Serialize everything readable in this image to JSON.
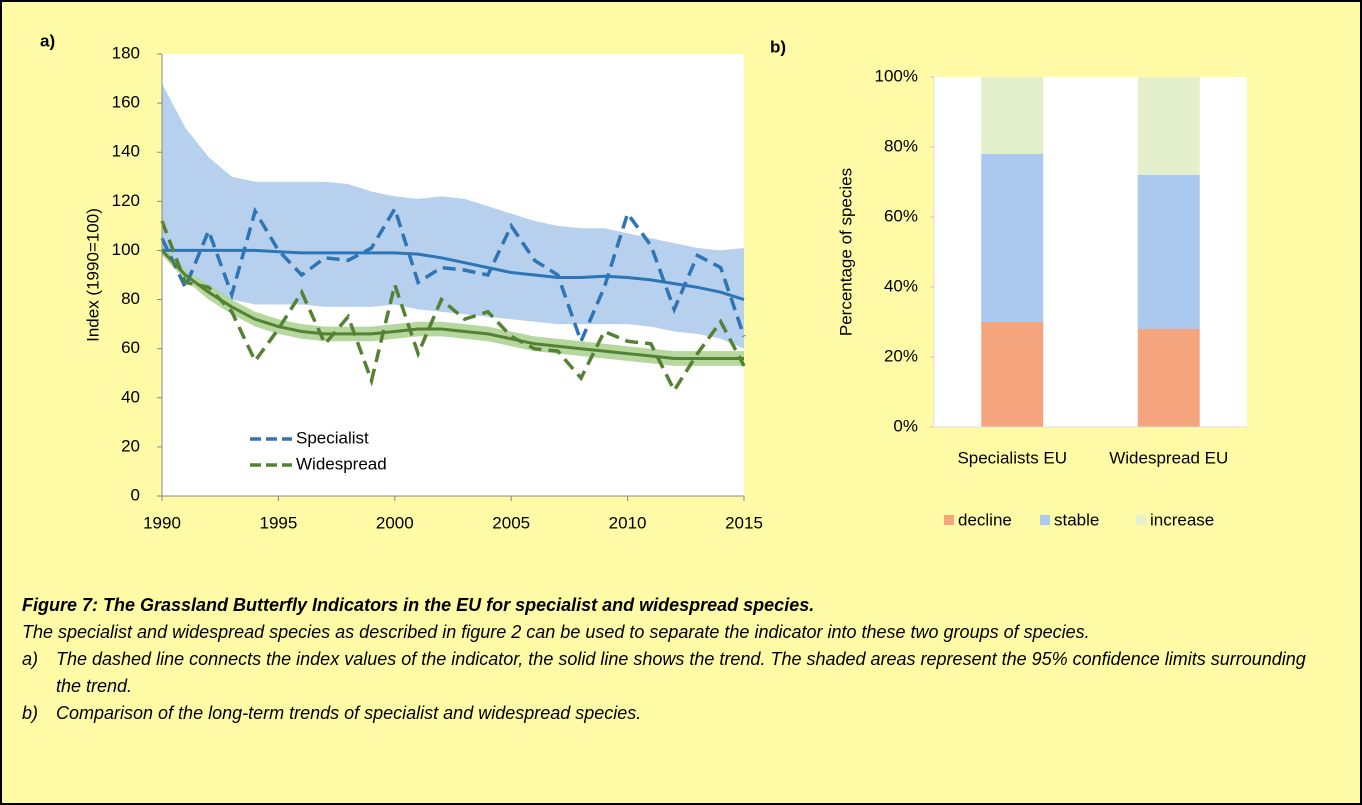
{
  "chart_data": [
    {
      "type": "line",
      "label": "a)",
      "y_label": "Index (1990=100)",
      "x": [
        1990,
        1991,
        1992,
        1993,
        1994,
        1995,
        1996,
        1997,
        1998,
        1999,
        2000,
        2001,
        2002,
        2003,
        2004,
        2005,
        2006,
        2007,
        2008,
        2009,
        2010,
        2011,
        2012,
        2013,
        2014,
        2015
      ],
      "xlim": [
        1990,
        2015
      ],
      "xticks": [
        1990,
        1995,
        2000,
        2005,
        2010,
        2015
      ],
      "ylim": [
        0,
        180
      ],
      "yticks": [
        0,
        20,
        40,
        60,
        80,
        100,
        120,
        140,
        160,
        180
      ],
      "series": [
        {
          "name": "Specialist",
          "color": "#2e75b6",
          "ci_color": "#a9c8eb",
          "values": [
            105,
            85,
            108,
            82,
            116,
            100,
            90,
            97,
            96,
            101,
            117,
            87,
            93,
            92,
            90,
            110,
            96,
            90,
            63,
            85,
            115,
            102,
            76,
            98,
            93,
            65
          ],
          "trend": [
            100,
            100,
            100,
            100,
            100,
            99.5,
            99,
            99,
            99,
            99,
            99,
            98.5,
            97,
            95,
            93,
            91,
            90,
            89,
            89,
            89.5,
            89,
            88,
            86.5,
            85,
            83,
            80
          ],
          "ci_upper": [
            168,
            150,
            138,
            130,
            128,
            128,
            128,
            128,
            127,
            124,
            122,
            121,
            122,
            121,
            118,
            115,
            112,
            110,
            109,
            109,
            107,
            105,
            103,
            101,
            100,
            101
          ],
          "ci_lower": [
            100,
            92,
            85,
            80,
            78,
            78,
            78,
            77,
            77,
            77,
            78,
            76,
            75,
            74,
            73,
            72,
            71,
            70,
            70,
            70,
            70,
            69,
            67,
            66,
            64,
            60
          ]
        },
        {
          "name": "Widespread",
          "color": "#548235",
          "ci_color": "#a9d18e",
          "values": [
            112,
            87,
            85,
            75,
            55,
            68,
            83,
            62,
            73,
            47,
            86,
            58,
            80,
            72,
            75,
            65,
            60,
            59,
            48,
            67,
            63,
            62,
            43,
            58,
            71,
            53
          ],
          "trend": [
            100,
            90,
            83,
            77,
            72,
            69,
            67,
            66,
            66,
            66,
            67,
            68,
            68,
            67,
            66,
            64,
            62,
            61,
            60,
            59,
            58,
            57,
            56,
            56,
            56,
            56
          ],
          "ci_upper": [
            102,
            92,
            86,
            80,
            75,
            72,
            70,
            69,
            69,
            69,
            70,
            71,
            71,
            70,
            69,
            67,
            65,
            64,
            63,
            62,
            61,
            60,
            59,
            59,
            59,
            59
          ],
          "ci_lower": [
            98,
            88,
            80,
            74,
            69,
            66,
            64,
            63,
            63,
            63,
            64,
            65,
            65,
            64,
            63,
            61,
            59,
            58,
            57,
            56,
            55,
            54,
            53,
            53,
            53,
            53
          ]
        }
      ]
    },
    {
      "type": "bar",
      "label": "b)",
      "y_label": "Percentage of species",
      "categories": [
        "Specialists EU",
        "Widespread EU"
      ],
      "ylim": [
        0,
        100
      ],
      "yticks": [
        {
          "value": 0,
          "label": "0%"
        },
        {
          "value": 20,
          "label": "20%"
        },
        {
          "value": 40,
          "label": "40%"
        },
        {
          "value": 60,
          "label": "60%"
        },
        {
          "value": 80,
          "label": "80%"
        },
        {
          "value": 100,
          "label": "100%"
        }
      ],
      "series": [
        {
          "name": "decline",
          "color": "#f5a57e",
          "values": [
            30,
            28
          ]
        },
        {
          "name": "stable",
          "color": "#abc9ee",
          "values": [
            48,
            44
          ]
        },
        {
          "name": "increase",
          "color": "#e4efcc",
          "values": [
            22,
            28
          ]
        }
      ]
    }
  ],
  "caption": {
    "title": "Figure 7: The Grassland Butterfly Indicators in the EU for specialist and widespread species.",
    "text": "The specialist and widespread species as described in figure 2 can be used to separate the indicator into these two groups of species.",
    "items": [
      {
        "marker": "a)",
        "text": "The dashed line connects the index values of the indicator, the solid line shows the trend. The shaded areas represent the 95% confidence limits surrounding the trend."
      },
      {
        "marker": "b)",
        "text": "Comparison of the long-term trends of specialist and widespread species."
      }
    ]
  }
}
